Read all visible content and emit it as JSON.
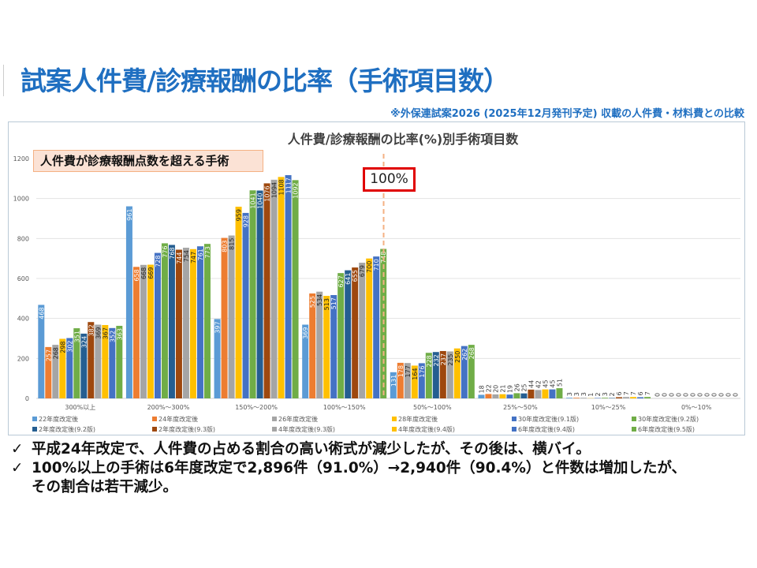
{
  "slide": {
    "title": "試案人件費/診療報酬の比率（手術項目数）",
    "note": "※外保連試案2026 (2025年12月発刊予定) 収載の人件費・材料費との比較",
    "callout": "人件費が診療報酬点数を超える手術",
    "threshold_label": "100%",
    "bullets": [
      {
        "icon": "✓",
        "text": "平成24年改定で、人件費の占める割合の高い術式が減少したが、その後は、横バイ。"
      },
      {
        "icon": "✓",
        "text": "100%以上の手術は6年度改定で2,896件（91.0%）→2,940件（90.4%）と件数は増加したが、"
      },
      {
        "icon": "",
        "text": "その割合は若干減少。"
      }
    ]
  },
  "chart_data": {
    "type": "bar",
    "title": "人件費/診療報酬の比率(%)別手術項目数",
    "xlabel": "",
    "ylabel": "",
    "ylim": [
      0,
      1200
    ],
    "yticks": [
      0,
      200,
      400,
      600,
      800,
      1000,
      1200
    ],
    "grid": true,
    "legend_position": "bottom",
    "categories": [
      "300%以上",
      "200%～300%",
      "150%～200%",
      "100%～150%",
      "50%～100%",
      "25%～50%",
      "10%～25%",
      "0%～10%"
    ],
    "series": [
      {
        "name": "22年度改定後",
        "color": "#5B9BD5",
        "values": [
          468,
          961,
          397,
          369,
          131,
          18,
          3,
          0
        ]
      },
      {
        "name": "24年度改定後",
        "color": "#ED7D31",
        "values": [
          257,
          658,
          803,
          525,
          178,
          22,
          3,
          0
        ]
      },
      {
        "name": "26年度改定後",
        "color": "#A5A5A5",
        "values": [
          268,
          668,
          815,
          534,
          177,
          20,
          3,
          0
        ]
      },
      {
        "name": "28年度改定後",
        "color": "#FFC000",
        "values": [
          298,
          669,
          959,
          513,
          164,
          21,
          1,
          0
        ]
      },
      {
        "name": "30年度改定後(9.1版)",
        "color": "#4472C4",
        "values": [
          302,
          728,
          928,
          517,
          176,
          19,
          2,
          0
        ]
      },
      {
        "name": "30年度改定後(9.2版)",
        "color": "#70AD47",
        "values": [
          351,
          776,
          1041,
          627,
          228,
          26,
          3,
          0
        ]
      },
      {
        "name": "2年度改定後(9.2版)",
        "color": "#255E91",
        "values": [
          324,
          768,
          1040,
          641,
          232,
          25,
          2,
          0
        ]
      },
      {
        "name": "2年度改定後(9.3版)",
        "color": "#9E480E",
        "values": [
          382,
          744,
          1076,
          655,
          237,
          44,
          6,
          0
        ]
      },
      {
        "name": "4年度改定後(9.3版)",
        "color": "#A5A5A5",
        "values": [
          369,
          754,
          1094,
          679,
          235,
          42,
          7,
          0
        ]
      },
      {
        "name": "4年度改定後(9.4版)",
        "color": "#FFC000",
        "values": [
          367,
          747,
          1108,
          700,
          250,
          45,
          7,
          0
        ]
      },
      {
        "name": "6年度改定後(9.4版)",
        "color": "#4472C4",
        "values": [
          352,
          761,
          1117,
          710,
          262,
          45,
          6,
          0
        ]
      },
      {
        "name": "6年度改定後(9.5版)",
        "color": "#70AD47",
        "values": [
          363,
          773,
          1092,
          748,
          268,
          51,
          7,
          0
        ]
      }
    ]
  }
}
